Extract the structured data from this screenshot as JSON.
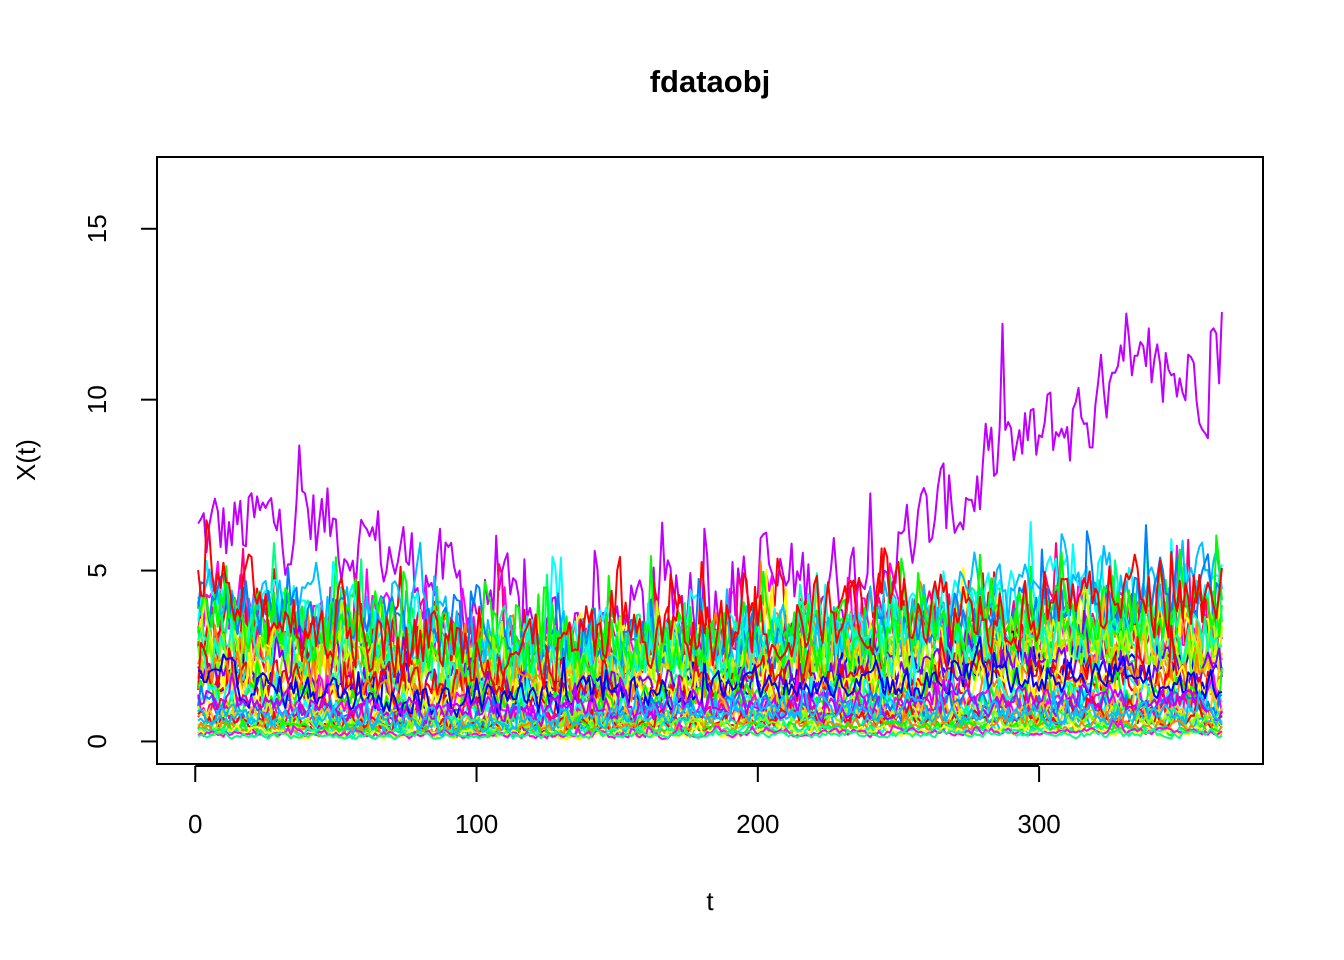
{
  "chart_data": {
    "type": "line",
    "title": "fdataobj",
    "xlabel": "t",
    "ylabel": "X(t)",
    "xlim": [
      -13.6,
      379.6
    ],
    "ylim": [
      -0.66,
      17.1
    ],
    "x_ticks": [
      0,
      100,
      200,
      300
    ],
    "y_ticks": [
      0,
      5,
      10,
      15
    ],
    "x_domain": [
      1,
      365
    ],
    "grid": false,
    "legend": "none",
    "series_count": 42,
    "palette": [
      "#FF0000",
      "#FF7F00",
      "#FFBF00",
      "#FFFF00",
      "#BFFF00",
      "#7FFF00",
      "#00FF00",
      "#00FF7F",
      "#00FFBF",
      "#00FFFF",
      "#00BFFF",
      "#007FFF",
      "#0000FF",
      "#7F00FF",
      "#BF00FF",
      "#FF00FF",
      "#FF007F"
    ],
    "series_profiles": [
      {
        "color": "#BF00FF",
        "base": [
          6.0,
          6.5,
          5.0,
          3.0,
          3.5,
          4.5,
          5.0,
          8.0,
          10.0,
          11.0
        ],
        "noise": 2.2
      },
      {
        "color": "#FF00FF",
        "base": [
          4.0,
          3.5,
          3.0,
          2.5,
          2.8,
          3.0,
          3.0,
          3.2,
          3.5,
          3.0
        ],
        "noise": 1.6
      },
      {
        "color": "#FF007F",
        "base": [
          3.5,
          3.0,
          2.8,
          2.5,
          2.8,
          3.0,
          3.2,
          3.0,
          3.2,
          3.0
        ],
        "noise": 1.6
      },
      {
        "color": "#FF0000",
        "base": [
          3.0,
          3.0,
          2.5,
          2.2,
          2.5,
          3.0,
          3.5,
          3.0,
          3.0,
          3.5
        ],
        "noise": 1.6
      },
      {
        "color": "#FF7F00",
        "base": [
          3.0,
          2.8,
          2.6,
          2.4,
          2.6,
          2.8,
          3.0,
          3.0,
          3.2,
          3.0
        ],
        "noise": 1.5
      },
      {
        "color": "#FFFF00",
        "base": [
          3.0,
          2.6,
          2.5,
          2.3,
          2.5,
          2.8,
          2.8,
          3.2,
          3.4,
          3.0
        ],
        "noise": 1.5
      },
      {
        "color": "#00FF00",
        "base": [
          3.2,
          3.0,
          2.5,
          2.4,
          2.6,
          3.0,
          3.0,
          3.0,
          3.2,
          3.2
        ],
        "noise": 1.6
      },
      {
        "color": "#00FF7F",
        "base": [
          3.5,
          3.2,
          2.8,
          2.6,
          2.6,
          2.8,
          3.0,
          3.2,
          3.4,
          3.2
        ],
        "noise": 1.5
      },
      {
        "color": "#00FFFF",
        "base": [
          4.0,
          3.6,
          3.2,
          2.8,
          2.8,
          3.0,
          3.5,
          4.0,
          4.5,
          4.0
        ],
        "noise": 1.5
      },
      {
        "color": "#00BFFF",
        "base": [
          4.5,
          3.8,
          3.4,
          2.8,
          2.8,
          3.0,
          3.4,
          4.0,
          4.5,
          4.5
        ],
        "noise": 1.5
      },
      {
        "color": "#007FFF",
        "base": [
          4.2,
          3.6,
          3.0,
          2.6,
          2.5,
          2.8,
          3.0,
          3.5,
          4.0,
          4.2
        ],
        "noise": 1.5
      },
      {
        "color": "#0000FF",
        "base": [
          2.0,
          1.6,
          1.4,
          1.4,
          1.6,
          1.8,
          2.0,
          2.2,
          2.2,
          2.0
        ],
        "noise": 0.8
      },
      {
        "color": "#BFFF00",
        "base": [
          2.5,
          2.2,
          2.0,
          1.8,
          2.0,
          2.2,
          2.4,
          2.6,
          2.8,
          2.6
        ],
        "noise": 1.3
      },
      {
        "color": "#FFBF00",
        "base": [
          2.2,
          2.0,
          1.8,
          1.6,
          1.8,
          2.0,
          2.2,
          2.4,
          2.4,
          2.2
        ],
        "noise": 1.2
      },
      {
        "color": "#7FFF00",
        "base": [
          2.4,
          2.0,
          1.8,
          1.6,
          1.8,
          2.0,
          2.0,
          2.2,
          2.4,
          2.2
        ],
        "noise": 1.2
      },
      {
        "color": "#7F00FF",
        "base": [
          2.0,
          1.8,
          1.6,
          1.5,
          1.6,
          1.8,
          2.0,
          2.2,
          2.4,
          2.0
        ],
        "noise": 1.0
      },
      {
        "color": "#00FFBF",
        "base": [
          2.8,
          2.4,
          2.2,
          2.0,
          2.2,
          2.4,
          2.6,
          2.8,
          3.0,
          2.8
        ],
        "noise": 1.3
      },
      {
        "color": "#FF0000",
        "base": [
          1.8,
          1.6,
          1.5,
          1.4,
          1.5,
          1.6,
          1.8,
          1.8,
          1.9,
          1.8
        ],
        "noise": 1.0
      },
      {
        "color": "#FF7F00",
        "base": [
          1.5,
          1.4,
          1.2,
          1.2,
          1.3,
          1.4,
          1.5,
          1.6,
          1.6,
          1.5
        ],
        "noise": 0.9
      },
      {
        "color": "#FFFF00",
        "base": [
          1.4,
          1.2,
          1.1,
          1.1,
          1.2,
          1.3,
          1.4,
          1.4,
          1.5,
          1.4
        ],
        "noise": 0.9
      },
      {
        "color": "#00FF00",
        "base": [
          1.3,
          1.1,
          1.0,
          1.0,
          1.1,
          1.2,
          1.3,
          1.3,
          1.4,
          1.3
        ],
        "noise": 0.8
      },
      {
        "color": "#00FFFF",
        "base": [
          1.2,
          1.0,
          0.9,
          0.9,
          1.0,
          1.1,
          1.2,
          1.2,
          1.3,
          1.2
        ],
        "noise": 0.7
      },
      {
        "color": "#FF00FF",
        "base": [
          1.0,
          0.9,
          0.8,
          0.8,
          0.9,
          1.0,
          1.0,
          1.1,
          1.1,
          1.0
        ],
        "noise": 0.6
      },
      {
        "color": "#007FFF",
        "base": [
          1.0,
          0.8,
          0.7,
          0.7,
          0.8,
          0.9,
          1.0,
          1.0,
          1.1,
          1.0
        ],
        "noise": 0.6
      },
      {
        "color": "#FF007F",
        "base": [
          0.8,
          0.7,
          0.6,
          0.6,
          0.7,
          0.8,
          0.8,
          0.9,
          0.9,
          0.8
        ],
        "noise": 0.5
      },
      {
        "color": "#FFBF00",
        "base": [
          0.8,
          0.7,
          0.6,
          0.6,
          0.7,
          0.8,
          0.8,
          0.8,
          0.9,
          0.8
        ],
        "noise": 0.5
      },
      {
        "color": "#BFFF00",
        "base": [
          0.7,
          0.6,
          0.5,
          0.5,
          0.6,
          0.7,
          0.7,
          0.8,
          0.8,
          0.7
        ],
        "noise": 0.45
      },
      {
        "color": "#00FF7F",
        "base": [
          0.6,
          0.5,
          0.5,
          0.5,
          0.5,
          0.6,
          0.6,
          0.7,
          0.7,
          0.6
        ],
        "noise": 0.4
      },
      {
        "color": "#FF0000",
        "base": [
          0.6,
          0.5,
          0.4,
          0.4,
          0.5,
          0.6,
          0.6,
          0.6,
          0.7,
          0.6
        ],
        "noise": 0.4
      },
      {
        "color": "#00BFFF",
        "base": [
          0.5,
          0.4,
          0.4,
          0.4,
          0.6,
          0.7,
          0.6,
          0.6,
          0.6,
          0.5
        ],
        "noise": 0.4
      },
      {
        "color": "#7FFF00",
        "base": [
          0.5,
          0.4,
          0.4,
          0.4,
          0.4,
          0.5,
          0.5,
          0.5,
          0.6,
          0.5
        ],
        "noise": 0.35
      },
      {
        "color": "#FF7F00",
        "base": [
          0.4,
          0.4,
          0.3,
          0.3,
          0.4,
          0.4,
          0.5,
          0.5,
          0.5,
          0.4
        ],
        "noise": 0.3
      },
      {
        "color": "#00FF00",
        "base": [
          0.3,
          0.3,
          0.3,
          0.3,
          0.3,
          0.4,
          0.4,
          0.4,
          0.4,
          0.3
        ],
        "noise": 0.25
      },
      {
        "color": "#00FFBF",
        "base": [
          0.3,
          0.25,
          0.2,
          0.2,
          0.3,
          0.3,
          0.3,
          0.3,
          0.3,
          0.3
        ],
        "noise": 0.2
      },
      {
        "color": "#FFFF00",
        "base": [
          0.3,
          0.2,
          0.2,
          0.2,
          0.2,
          0.3,
          0.3,
          0.3,
          0.3,
          0.3
        ],
        "noise": 0.2
      },
      {
        "color": "#FF00FF",
        "base": [
          0.25,
          0.2,
          0.2,
          0.2,
          0.2,
          0.25,
          0.25,
          0.3,
          0.3,
          0.25
        ],
        "noise": 0.18
      },
      {
        "color": "#0000FF",
        "base": [
          1.8,
          1.4,
          1.2,
          1.2,
          1.4,
          1.6,
          1.6,
          1.8,
          2.0,
          1.6
        ],
        "noise": 0.8
      },
      {
        "color": "#00FF7F",
        "base": [
          0.2,
          0.15,
          0.15,
          0.15,
          0.2,
          0.2,
          0.2,
          0.2,
          0.2,
          0.2
        ],
        "noise": 0.15
      },
      {
        "color": "#BF00FF",
        "base": [
          1.2,
          1.0,
          0.9,
          0.9,
          1.0,
          1.0,
          1.1,
          1.2,
          1.2,
          1.1
        ],
        "noise": 0.6
      },
      {
        "color": "#00FF00",
        "base": [
          4.0,
          3.4,
          3.0,
          2.6,
          2.6,
          2.8,
          3.0,
          3.4,
          3.8,
          3.6
        ],
        "noise": 1.5
      },
      {
        "color": "#FF0000",
        "base": [
          4.5,
          3.5,
          3.0,
          2.6,
          3.0,
          3.5,
          4.0,
          4.0,
          4.2,
          4.4
        ],
        "noise": 1.8
      },
      {
        "color": "#00BFFF",
        "base": [
          0.8,
          0.6,
          0.5,
          0.5,
          0.8,
          1.0,
          0.9,
          0.8,
          0.8,
          0.7
        ],
        "noise": 0.5
      }
    ]
  }
}
